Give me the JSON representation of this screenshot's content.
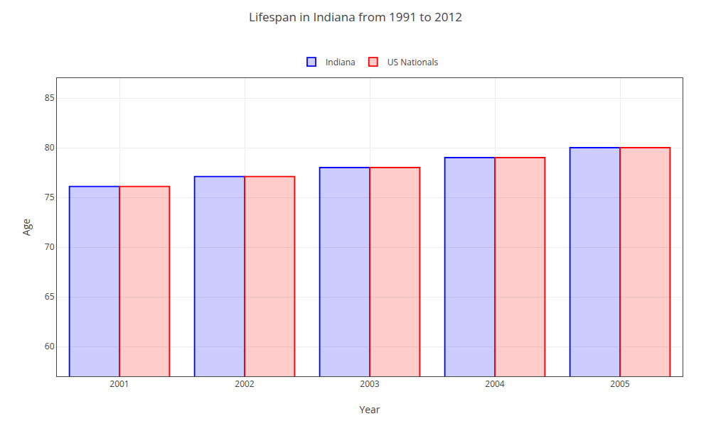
{
  "chart_data": {
    "type": "bar",
    "title": "Lifespan in Indiana from 1991 to 2012",
    "xlabel": "Year",
    "ylabel": "Age",
    "categories": [
      "2001",
      "2002",
      "2003",
      "2004",
      "2005"
    ],
    "series": [
      {
        "name": "Indiana",
        "color": "#0000ff",
        "values": [
          76.1,
          77.1,
          78.0,
          79.0,
          80.0
        ]
      },
      {
        "name": "US Nationals",
        "color": "#ff0000",
        "values": [
          76.1,
          77.1,
          78.0,
          79.0,
          80.0
        ]
      }
    ],
    "ylim": [
      57,
      87
    ],
    "yticks": [
      60,
      65,
      70,
      75,
      80,
      85
    ],
    "grid": true,
    "legend": "top"
  }
}
